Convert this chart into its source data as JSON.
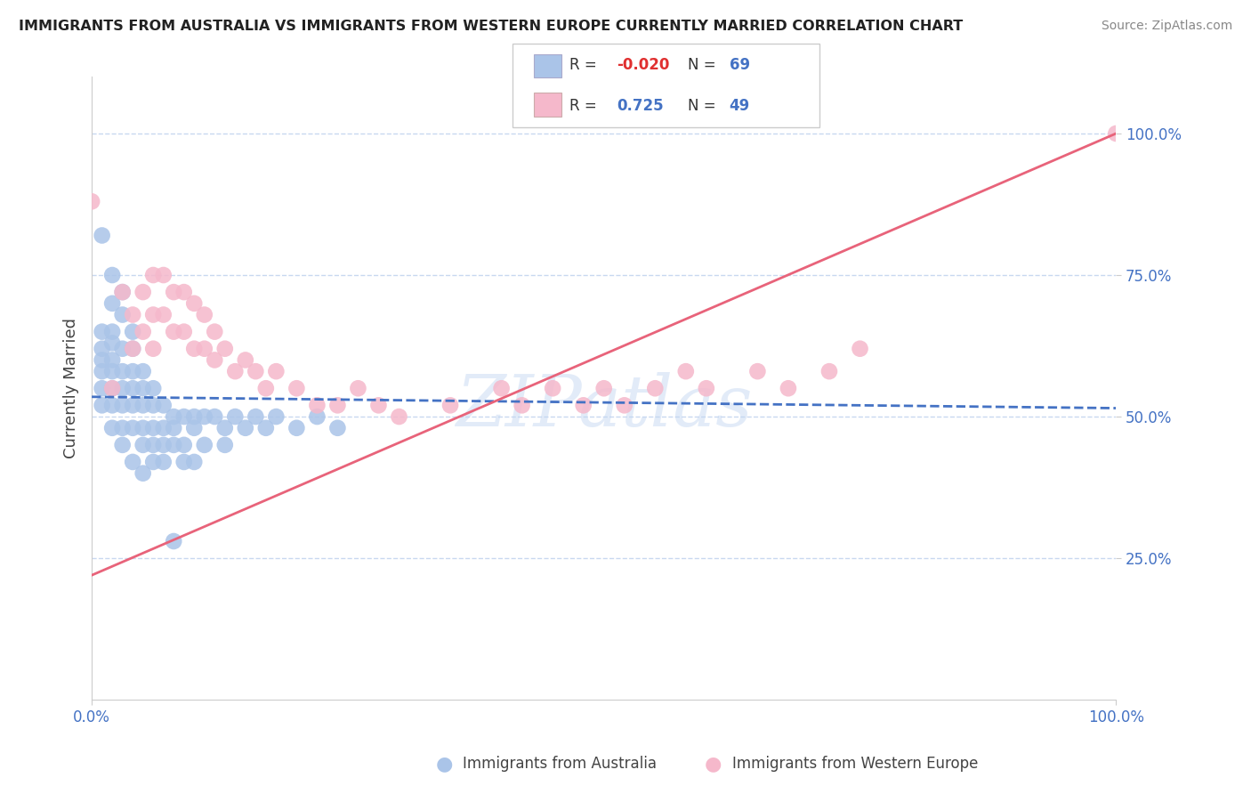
{
  "title": "IMMIGRANTS FROM AUSTRALIA VS IMMIGRANTS FROM WESTERN EUROPE CURRENTLY MARRIED CORRELATION CHART",
  "source": "Source: ZipAtlas.com",
  "ylabel": "Currently Married",
  "legend_labels": [
    "Immigrants from Australia",
    "Immigrants from Western Europe"
  ],
  "r_australia": -0.02,
  "n_australia": 69,
  "r_western_europe": 0.725,
  "n_western_europe": 49,
  "watermark": "ZIPatlas",
  "blue_color": "#aac4e8",
  "pink_color": "#f5b8cb",
  "blue_line_color": "#4472c4",
  "pink_line_color": "#e8637a",
  "grid_color": "#c8d8f0",
  "blue_scatter_x": [
    0.01,
    0.01,
    0.01,
    0.01,
    0.01,
    0.01,
    0.02,
    0.02,
    0.02,
    0.02,
    0.02,
    0.02,
    0.02,
    0.02,
    0.02,
    0.03,
    0.03,
    0.03,
    0.03,
    0.03,
    0.03,
    0.03,
    0.03,
    0.04,
    0.04,
    0.04,
    0.04,
    0.04,
    0.04,
    0.04,
    0.05,
    0.05,
    0.05,
    0.05,
    0.05,
    0.05,
    0.06,
    0.06,
    0.06,
    0.06,
    0.06,
    0.07,
    0.07,
    0.07,
    0.07,
    0.08,
    0.08,
    0.08,
    0.09,
    0.09,
    0.09,
    0.1,
    0.1,
    0.1,
    0.11,
    0.11,
    0.12,
    0.13,
    0.13,
    0.14,
    0.15,
    0.16,
    0.17,
    0.18,
    0.2,
    0.22,
    0.24,
    0.01,
    0.08
  ],
  "blue_scatter_y": [
    0.55,
    0.58,
    0.62,
    0.65,
    0.6,
    0.52,
    0.55,
    0.6,
    0.63,
    0.58,
    0.52,
    0.48,
    0.65,
    0.7,
    0.75,
    0.55,
    0.58,
    0.62,
    0.52,
    0.48,
    0.68,
    0.72,
    0.45,
    0.55,
    0.58,
    0.52,
    0.48,
    0.62,
    0.65,
    0.42,
    0.55,
    0.52,
    0.48,
    0.58,
    0.45,
    0.4,
    0.52,
    0.55,
    0.48,
    0.45,
    0.42,
    0.52,
    0.48,
    0.45,
    0.42,
    0.5,
    0.48,
    0.45,
    0.5,
    0.45,
    0.42,
    0.5,
    0.48,
    0.42,
    0.5,
    0.45,
    0.5,
    0.48,
    0.45,
    0.5,
    0.48,
    0.5,
    0.48,
    0.5,
    0.48,
    0.5,
    0.48,
    0.82,
    0.28
  ],
  "pink_scatter_x": [
    0.0,
    0.02,
    0.03,
    0.04,
    0.04,
    0.05,
    0.05,
    0.06,
    0.06,
    0.06,
    0.07,
    0.07,
    0.08,
    0.08,
    0.09,
    0.09,
    0.1,
    0.1,
    0.11,
    0.11,
    0.12,
    0.12,
    0.13,
    0.14,
    0.15,
    0.16,
    0.17,
    0.18,
    0.2,
    0.22,
    0.24,
    0.26,
    0.28,
    0.3,
    0.35,
    0.4,
    0.42,
    0.45,
    0.48,
    0.5,
    0.52,
    0.55,
    0.58,
    0.6,
    0.65,
    0.68,
    0.72,
    0.75,
    1.0
  ],
  "pink_scatter_y": [
    0.88,
    0.55,
    0.72,
    0.68,
    0.62,
    0.72,
    0.65,
    0.75,
    0.68,
    0.62,
    0.75,
    0.68,
    0.72,
    0.65,
    0.72,
    0.65,
    0.7,
    0.62,
    0.68,
    0.62,
    0.65,
    0.6,
    0.62,
    0.58,
    0.6,
    0.58,
    0.55,
    0.58,
    0.55,
    0.52,
    0.52,
    0.55,
    0.52,
    0.5,
    0.52,
    0.55,
    0.52,
    0.55,
    0.52,
    0.55,
    0.52,
    0.55,
    0.58,
    0.55,
    0.58,
    0.55,
    0.58,
    0.62,
    1.0
  ],
  "blue_line_x": [
    0.0,
    1.0
  ],
  "blue_line_y": [
    0.535,
    0.515
  ],
  "pink_line_x": [
    0.0,
    1.0
  ],
  "pink_line_y": [
    0.22,
    1.0
  ],
  "xlim": [
    0.0,
    1.0
  ],
  "ylim": [
    0.0,
    1.1
  ],
  "yticks": [
    0.25,
    0.5,
    0.75,
    1.0
  ],
  "ytick_labels": [
    "25.0%",
    "50.0%",
    "75.0%",
    "100.0%"
  ]
}
